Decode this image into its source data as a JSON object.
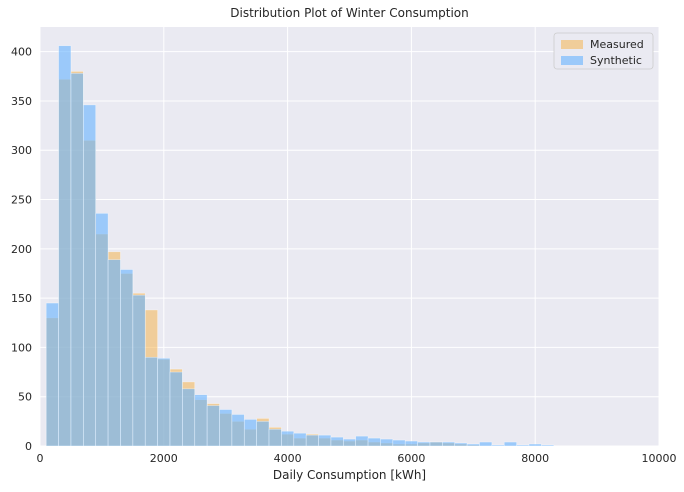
{
  "chart_data": {
    "type": "histogram",
    "title": "Distribution Plot of Winter Consumption",
    "xlabel": "Daily Consumption [kWh]",
    "ylabel": "",
    "xlim": [
      0,
      10000
    ],
    "ylim": [
      0,
      425
    ],
    "x_ticks": [
      0,
      2000,
      4000,
      6000,
      8000,
      10000
    ],
    "y_ticks": [
      0,
      50,
      100,
      150,
      200,
      250,
      300,
      350,
      400
    ],
    "grid": true,
    "legend_position": "top-right",
    "series": [
      {
        "name": "Measured",
        "color": "#f5b041",
        "opacity": 0.5,
        "bin_edges": [
          100,
          300,
          500,
          700,
          900,
          1100,
          1300,
          1500,
          1700,
          1900,
          2100,
          2300,
          2500,
          2700,
          2900,
          3100,
          3300,
          3500,
          3700,
          3900,
          4100,
          4300,
          4500,
          4700,
          4900,
          5100,
          5300,
          5500,
          5700,
          5900,
          6100,
          6300,
          6500,
          6700,
          6900,
          7100
        ],
        "counts": [
          130,
          372,
          380,
          310,
          215,
          197,
          175,
          155,
          138,
          88,
          78,
          65,
          47,
          43,
          33,
          25,
          17,
          28,
          19,
          12,
          8,
          12,
          8,
          6,
          5,
          6,
          4,
          3,
          2,
          2,
          3,
          4,
          3,
          2,
          1
        ]
      },
      {
        "name": "Synthetic",
        "color": "#66b3ff",
        "opacity": 0.6,
        "bin_edges": [
          100,
          300,
          500,
          700,
          900,
          1100,
          1300,
          1500,
          1700,
          1900,
          2100,
          2300,
          2500,
          2700,
          2900,
          3100,
          3300,
          3500,
          3700,
          3900,
          4100,
          4300,
          4500,
          4700,
          4900,
          5100,
          5300,
          5500,
          5700,
          5900,
          6100,
          6300,
          6500,
          6700,
          6900,
          7100,
          7300,
          7500,
          7700,
          7900,
          8100,
          8300
        ],
        "counts": [
          145,
          406,
          378,
          346,
          236,
          189,
          179,
          153,
          90,
          89,
          75,
          58,
          52,
          41,
          37,
          32,
          27,
          25,
          17,
          15,
          13,
          11,
          11,
          9,
          7,
          10,
          8,
          7,
          6,
          5,
          4,
          4,
          4,
          3,
          2,
          4,
          1,
          4,
          1,
          2,
          1
        ]
      }
    ]
  }
}
